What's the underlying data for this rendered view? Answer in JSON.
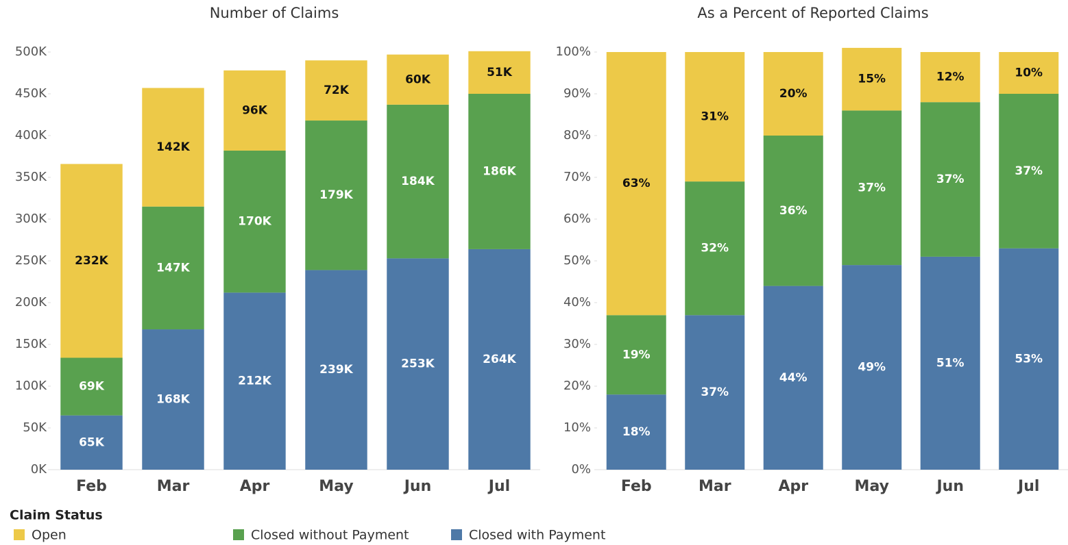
{
  "chart_data": [
    {
      "type": "stacked_bar",
      "title": "Number of Claims",
      "categories": [
        "Feb",
        "Mar",
        "Apr",
        "May",
        "Jun",
        "Jul"
      ],
      "series": [
        {
          "name": "Closed with Payment",
          "color": "#4e79a7",
          "values": [
            65,
            168,
            212,
            239,
            253,
            264
          ],
          "value_labels": [
            "65K",
            "168K",
            "212K",
            "239K",
            "253K",
            "264K"
          ]
        },
        {
          "name": "Closed without Payment",
          "color": "#59a14f",
          "values": [
            69,
            147,
            170,
            179,
            184,
            186
          ],
          "value_labels": [
            "69K",
            "147K",
            "170K",
            "179K",
            "184K",
            "186K"
          ]
        },
        {
          "name": "Open",
          "color": "#edc948",
          "values": [
            232,
            142,
            96,
            72,
            60,
            51
          ],
          "value_labels": [
            "232K",
            "142K",
            "96K",
            "72K",
            "60K",
            "51K"
          ]
        }
      ],
      "ylim": [
        0,
        500
      ],
      "yticks": [
        {
          "value": 0,
          "label": "0K"
        },
        {
          "value": 50,
          "label": "50K"
        },
        {
          "value": 100,
          "label": "100K"
        },
        {
          "value": 150,
          "label": "150K"
        },
        {
          "value": 200,
          "label": "200K"
        },
        {
          "value": 250,
          "label": "250K"
        },
        {
          "value": 300,
          "label": "300K"
        },
        {
          "value": 350,
          "label": "350K"
        },
        {
          "value": 400,
          "label": "400K"
        },
        {
          "value": 450,
          "label": "450K"
        },
        {
          "value": 500,
          "label": "500K"
        }
      ],
      "legend_title": "Claim Status"
    },
    {
      "type": "stacked_bar",
      "title": "As a Percent of Reported Claims",
      "categories": [
        "Feb",
        "Mar",
        "Apr",
        "May",
        "Jun",
        "Jul"
      ],
      "series": [
        {
          "color": "#4e79a7",
          "values": [
            18,
            37,
            44,
            49,
            51,
            53
          ],
          "value_labels": [
            "18%",
            "37%",
            "44%",
            "49%",
            "51%",
            "53%"
          ]
        },
        {
          "color": "#59a14f",
          "values": [
            19,
            32,
            36,
            37,
            37,
            37
          ],
          "value_labels": [
            "19%",
            "32%",
            "36%",
            "37%",
            "37%",
            "37%"
          ]
        },
        {
          "color": "#edc948",
          "values": [
            63,
            31,
            20,
            15,
            12,
            10
          ],
          "value_labels": [
            "63%",
            "31%",
            "20%",
            "15%",
            "12%",
            "10%"
          ]
        }
      ],
      "ylim": [
        0,
        100
      ],
      "yticks": [
        {
          "value": 0,
          "label": "0%"
        },
        {
          "value": 10,
          "label": "10%"
        },
        {
          "value": 20,
          "label": "20%"
        },
        {
          "value": 30,
          "label": "30%"
        },
        {
          "value": 40,
          "label": "40%"
        },
        {
          "value": 50,
          "label": "50%"
        },
        {
          "value": 60,
          "label": "60%"
        },
        {
          "value": 70,
          "label": "70%"
        },
        {
          "value": 80,
          "label": "80%"
        },
        {
          "value": 90,
          "label": "90%"
        },
        {
          "value": 100,
          "label": "100%"
        }
      ]
    }
  ]
}
